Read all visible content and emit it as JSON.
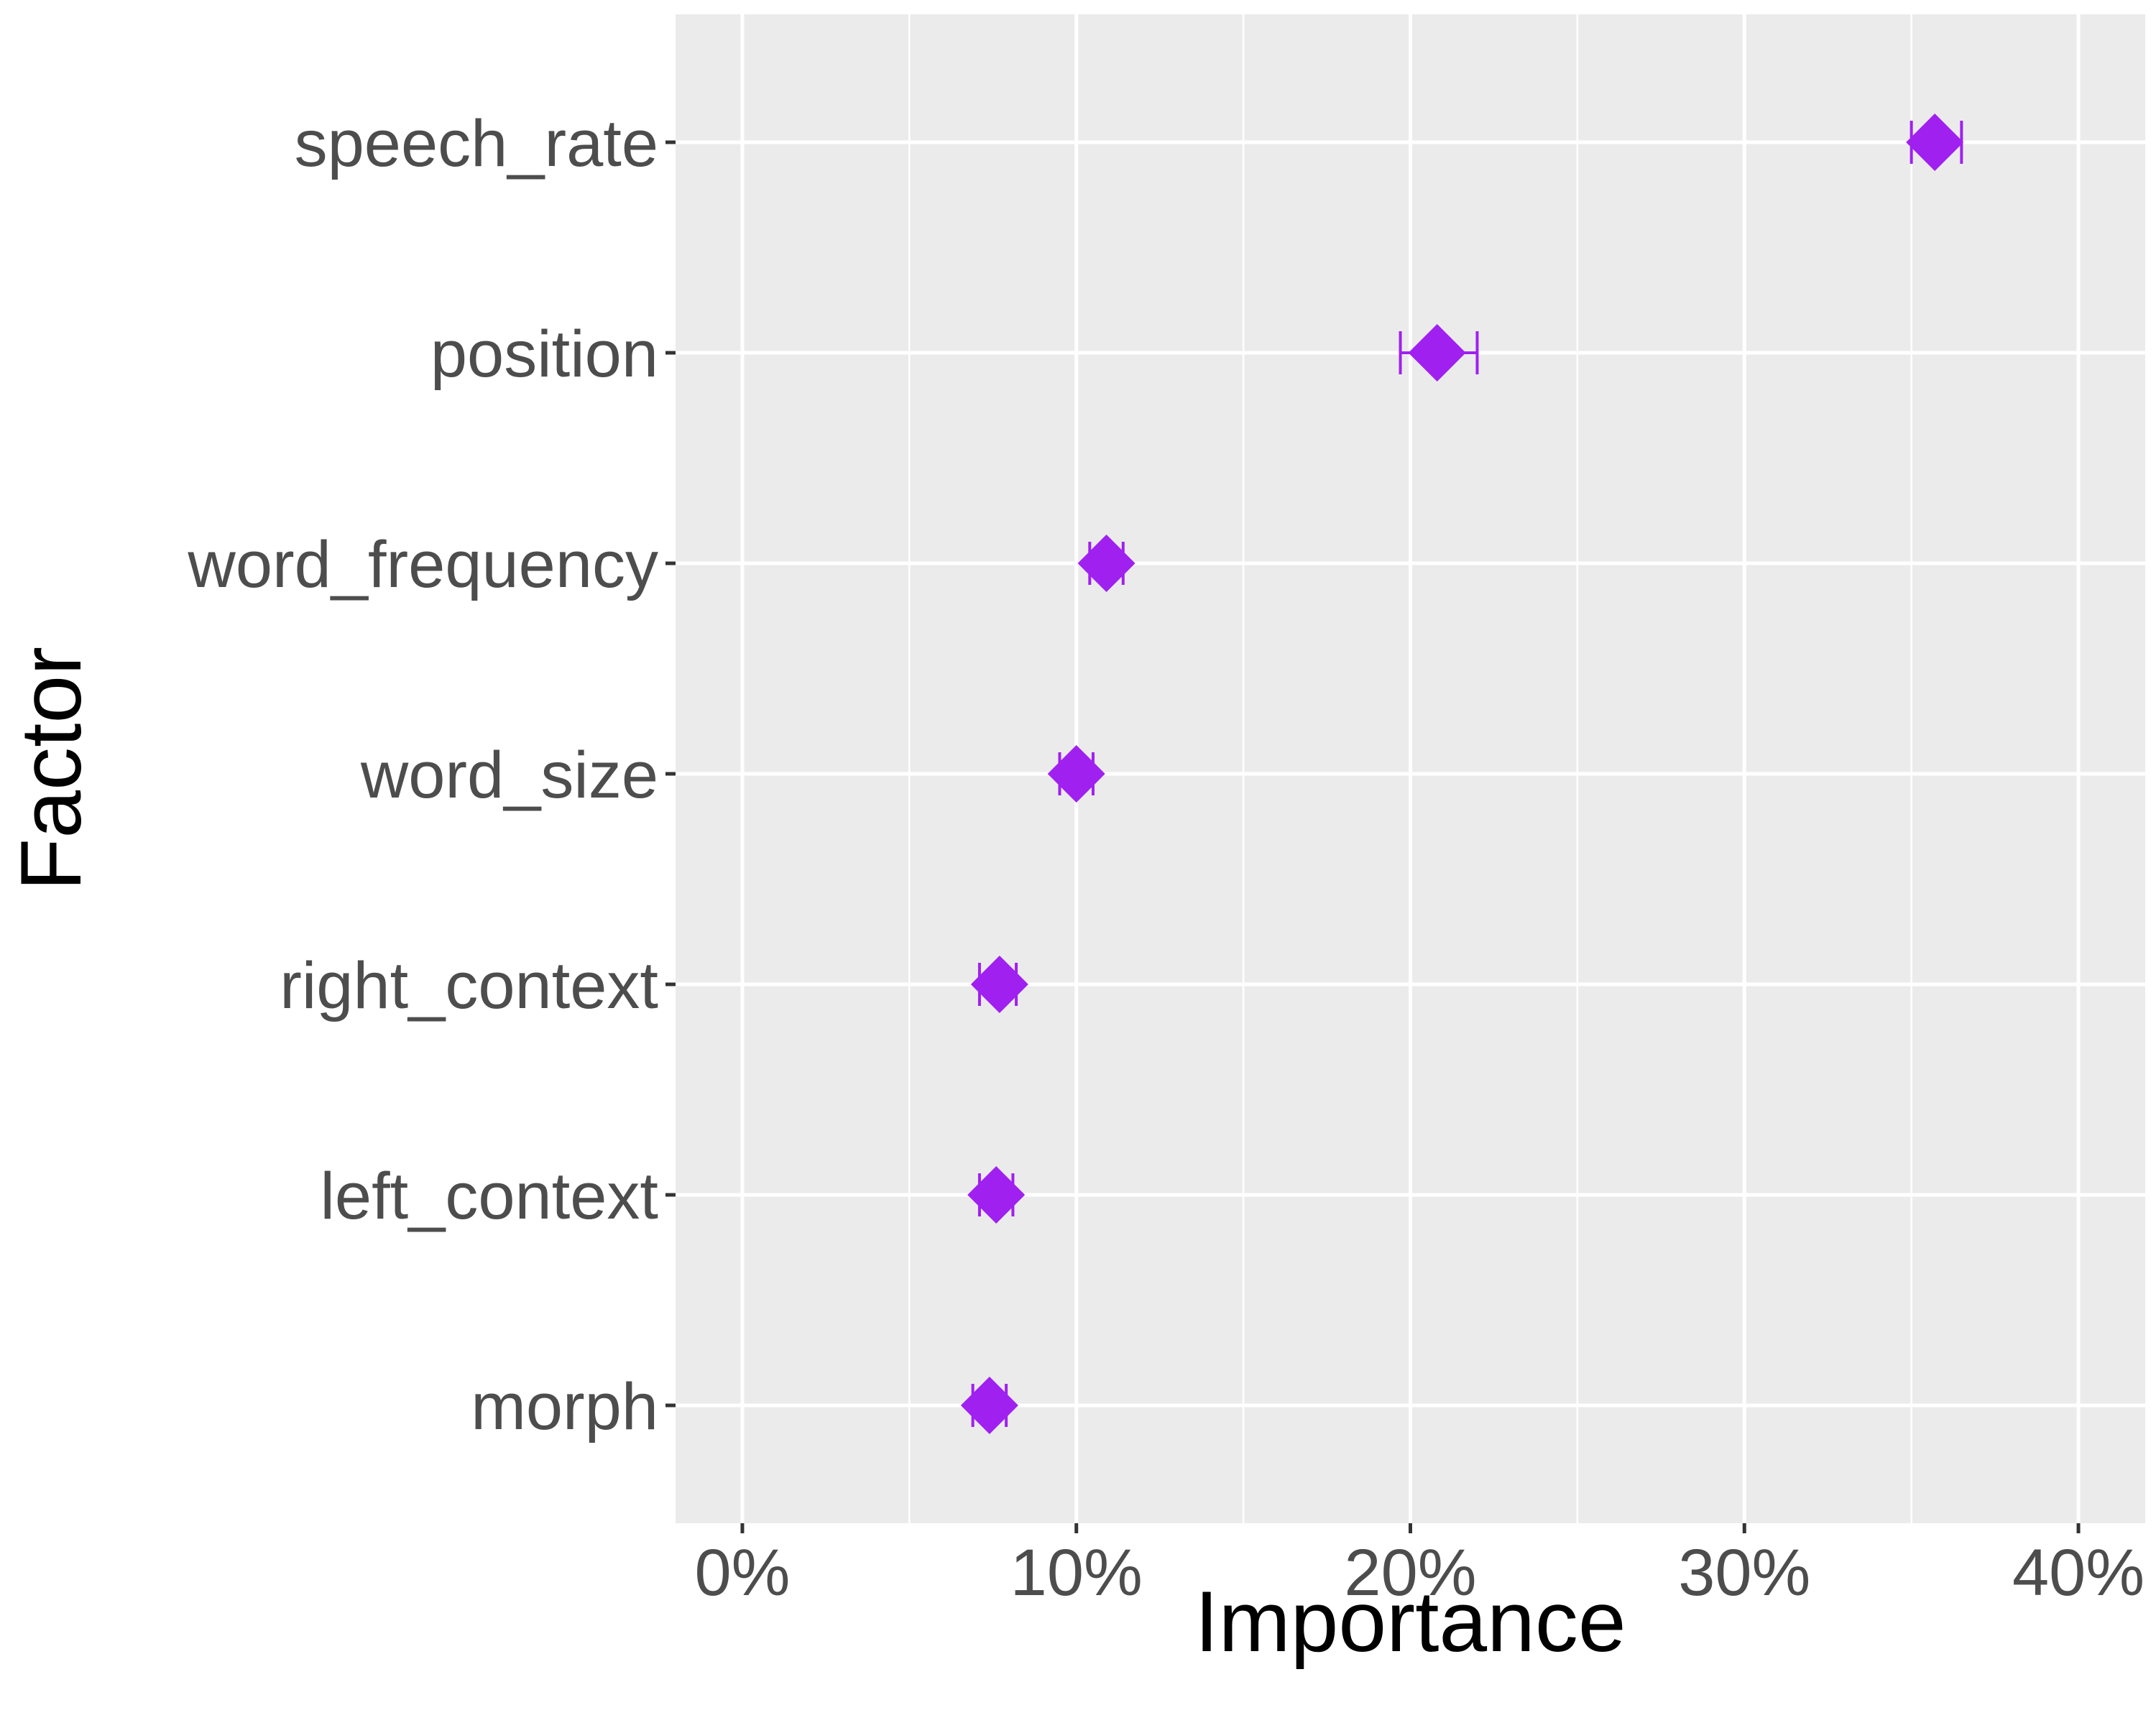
{
  "chart_data": {
    "type": "scatter",
    "xlabel": "Importance",
    "ylabel": "Factor",
    "x_ticks": [
      "0%",
      "10%",
      "20%",
      "30%",
      "40%"
    ],
    "x_tick_values": [
      0,
      10,
      20,
      30,
      40
    ],
    "xlim": [
      -2,
      42
    ],
    "grid": true,
    "marker": "diamond",
    "error_bars": true,
    "series": [
      {
        "categories": [
          "speech_rate",
          "position",
          "word_frequency",
          "word_size",
          "right_context",
          "left_context",
          "morph"
        ],
        "values": [
          35.7,
          20.8,
          10.9,
          10.0,
          7.7,
          7.6,
          7.4
        ],
        "lower": [
          35.0,
          19.7,
          10.4,
          9.5,
          7.1,
          7.1,
          6.9
        ],
        "upper": [
          36.5,
          22.0,
          11.4,
          10.5,
          8.2,
          8.1,
          7.9
        ]
      }
    ]
  },
  "colors": {
    "panel": "#ebebeb",
    "grid": "#ffffff",
    "point": "#a020f0",
    "tick_text": "#4d4d4d",
    "tick_mark": "#333333",
    "title_text": "#000000"
  }
}
